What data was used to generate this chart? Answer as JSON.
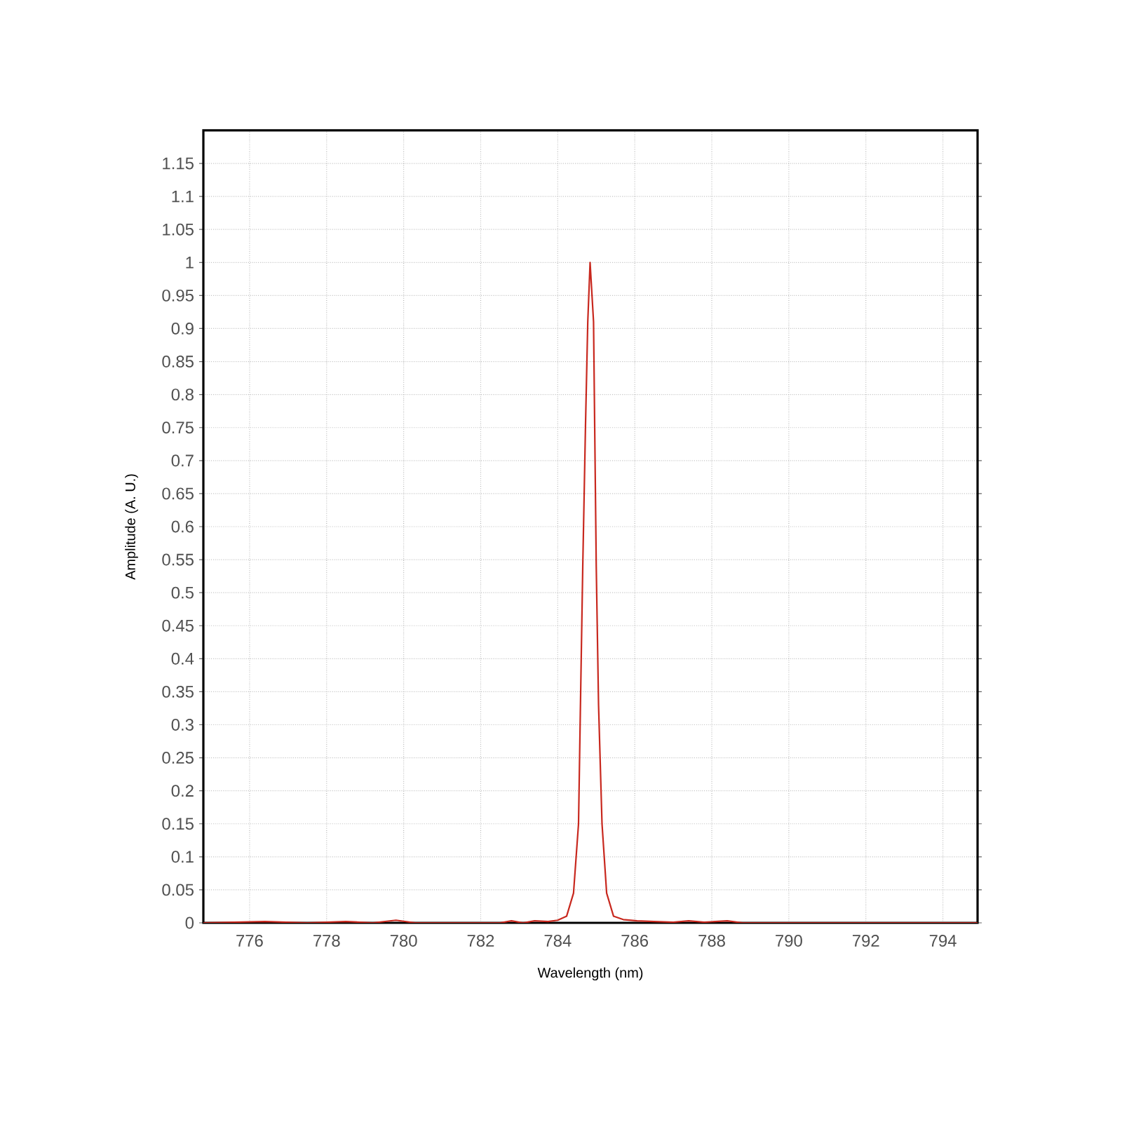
{
  "chart_data": {
    "type": "line",
    "xlabel": "Wavelength (nm)",
    "ylabel": "Amplitude (A. U.)",
    "x": [
      774.8,
      776.4,
      777.5,
      778.5,
      779.2,
      779.8,
      780.3,
      782.5,
      782.8,
      783.1,
      783.4,
      783.75,
      784.0,
      784.23,
      784.41,
      784.54,
      784.59,
      784.65,
      784.72,
      784.78,
      784.84,
      784.93,
      784.96,
      785.0,
      785.06,
      785.15,
      785.27,
      785.45,
      785.7,
      786.06,
      786.5,
      787.0,
      787.4,
      787.8,
      788.4,
      788.8,
      794.9
    ],
    "series": [
      {
        "color": "#c8281e",
        "values": [
          0,
          0.002,
          0,
          0.002,
          0,
          0.004,
          0,
          0,
          0.003,
          0,
          0.003,
          0.002,
          0.004,
          0.01,
          0.045,
          0.15,
          0.33,
          0.54,
          0.75,
          0.91,
          1.0,
          0.91,
          0.75,
          0.54,
          0.33,
          0.15,
          0.045,
          0.01,
          0.005,
          0.003,
          0.002,
          0.001,
          0.003,
          0.001,
          0.003,
          0,
          0
        ]
      }
    ],
    "xlim": [
      774.8,
      794.9
    ],
    "ylim": [
      0,
      1.2
    ],
    "xticks": [
      776,
      778,
      780,
      782,
      784,
      786,
      788,
      790,
      792,
      794
    ],
    "yticks": [
      0,
      0.05,
      0.1,
      0.15,
      0.2,
      0.25,
      0.3,
      0.35,
      0.4,
      0.45,
      0.5,
      0.55,
      0.6,
      0.65,
      0.7,
      0.75,
      0.8,
      0.85,
      0.9,
      0.95,
      1,
      1.05,
      1.1,
      1.15
    ],
    "grid": true
  }
}
